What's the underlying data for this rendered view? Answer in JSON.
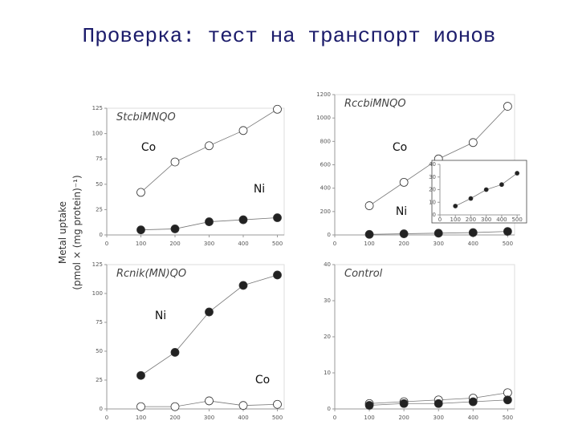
{
  "title": "Проверка: тест на транспорт ионов",
  "ylabel": "Metal uptake",
  "ylabel2": "(pmol × (mg protein)⁻¹)",
  "chart_data": [
    {
      "type": "line",
      "title": "StcbiMNQO",
      "x": [
        100,
        200,
        300,
        400,
        500
      ],
      "xlim": [
        0,
        520
      ],
      "xticks": [
        0,
        100,
        200,
        300,
        400,
        500
      ],
      "ylim": [
        0,
        125
      ],
      "yticks": [
        0,
        25,
        50,
        75,
        100,
        125
      ],
      "series": [
        {
          "name": "Co",
          "marker": "open",
          "values": [
            42,
            72,
            88,
            103,
            124
          ]
        },
        {
          "name": "Ni",
          "marker": "filled",
          "values": [
            5,
            6,
            13,
            15,
            17
          ]
        }
      ]
    },
    {
      "type": "line",
      "title": "RccbiMNQO",
      "x": [
        100,
        200,
        300,
        400,
        500
      ],
      "xlim": [
        0,
        520
      ],
      "xticks": [
        0,
        100,
        200,
        300,
        400,
        500
      ],
      "ylim": [
        0,
        1200
      ],
      "yticks": [
        0,
        200,
        400,
        600,
        800,
        1000,
        1200
      ],
      "series": [
        {
          "name": "Co",
          "marker": "open",
          "values": [
            250,
            450,
            650,
            790,
            1100
          ]
        },
        {
          "name": "Ni",
          "marker": "filled",
          "values": [
            5,
            10,
            15,
            20,
            30
          ]
        }
      ],
      "inset": {
        "x": [
          100,
          200,
          300,
          400,
          500
        ],
        "xlim": [
          0,
          520
        ],
        "xticks": [
          0,
          100,
          200,
          300,
          400,
          500
        ],
        "ylim": [
          0,
          40
        ],
        "yticks": [
          0,
          10,
          20,
          30,
          40
        ],
        "values": [
          7,
          13,
          20,
          24,
          33
        ]
      }
    },
    {
      "type": "line",
      "title": "Rcnik(MN)QO",
      "x": [
        100,
        200,
        300,
        400,
        500
      ],
      "xlim": [
        0,
        520
      ],
      "xticks": [
        0,
        100,
        200,
        300,
        400,
        500
      ],
      "ylim": [
        0,
        125
      ],
      "yticks": [
        0,
        25,
        50,
        75,
        100,
        125
      ],
      "series": [
        {
          "name": "Ni",
          "marker": "filled",
          "values": [
            29,
            49,
            84,
            107,
            116
          ]
        },
        {
          "name": "Co",
          "marker": "open",
          "values": [
            2,
            2,
            7,
            3,
            4
          ]
        }
      ]
    },
    {
      "type": "line",
      "title": "Control",
      "x": [
        100,
        200,
        300,
        400,
        500
      ],
      "xlim": [
        0,
        520
      ],
      "xticks": [
        0,
        100,
        200,
        300,
        400,
        500
      ],
      "ylim": [
        0,
        40
      ],
      "yticks": [
        0,
        10,
        20,
        30,
        40
      ],
      "series": [
        {
          "marker": "open",
          "values": [
            1.5,
            2,
            2.5,
            3,
            4.5
          ]
        },
        {
          "marker": "filled",
          "values": [
            1,
            1.5,
            1.5,
            2,
            2.5
          ]
        }
      ]
    }
  ]
}
